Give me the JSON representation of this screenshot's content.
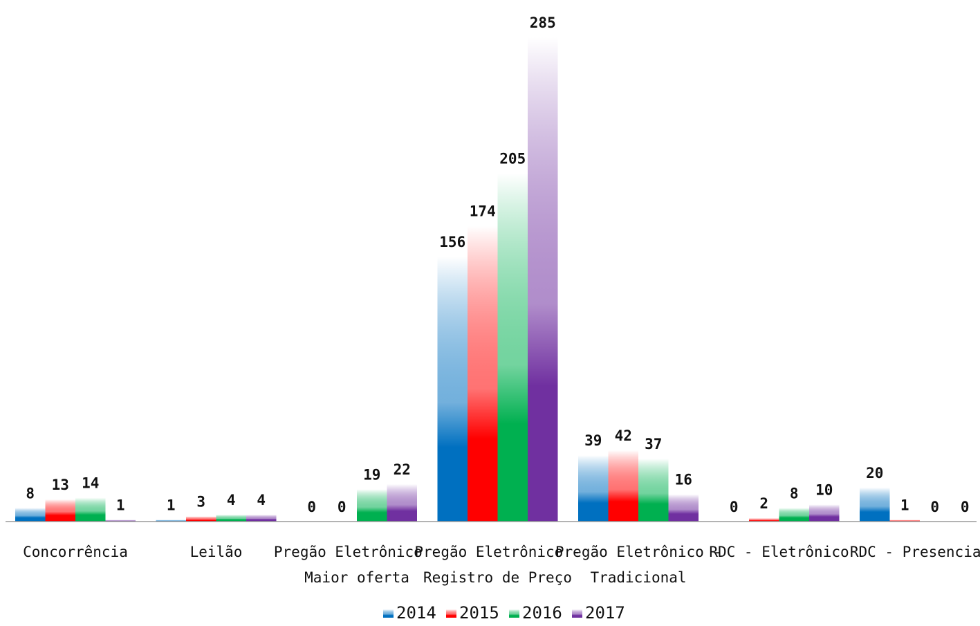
{
  "chart_data": {
    "type": "bar",
    "categories": [
      "Concorrência",
      "Leilão",
      "Pregão Eletrônico - Maior oferta",
      "Pregão Eletrônico - Registro de Preço",
      "Pregão Eletrônico - Tradicional",
      "RDC - Eletrônico",
      "RDC - Presencial"
    ],
    "category_lines": [
      [
        "Concorrência"
      ],
      [
        "Leilão"
      ],
      [
        "Pregão Eletrônico -",
        "Maior oferta"
      ],
      [
        "Pregão Eletrônico -",
        "Registro de Preço"
      ],
      [
        "Pregão Eletrônico -",
        "Tradicional"
      ],
      [
        "RDC - Eletrônico"
      ],
      [
        "RDC - Presencial"
      ]
    ],
    "series": [
      {
        "name": "2014",
        "color": "#0070c0",
        "values": [
          8,
          1,
          0,
          156,
          39,
          0,
          20
        ]
      },
      {
        "name": "2015",
        "color": "#ff0000",
        "values": [
          13,
          3,
          0,
          174,
          42,
          2,
          1
        ]
      },
      {
        "name": "2016",
        "color": "#00b050",
        "values": [
          14,
          4,
          19,
          205,
          37,
          8,
          0
        ]
      },
      {
        "name": "2017",
        "color": "#7030a0",
        "values": [
          1,
          4,
          22,
          285,
          16,
          10,
          0
        ]
      }
    ],
    "title": "",
    "xlabel": "",
    "ylabel": "",
    "ylim": [
      0,
      285
    ],
    "grid": false,
    "legend": "bottom",
    "data_labels": true
  }
}
